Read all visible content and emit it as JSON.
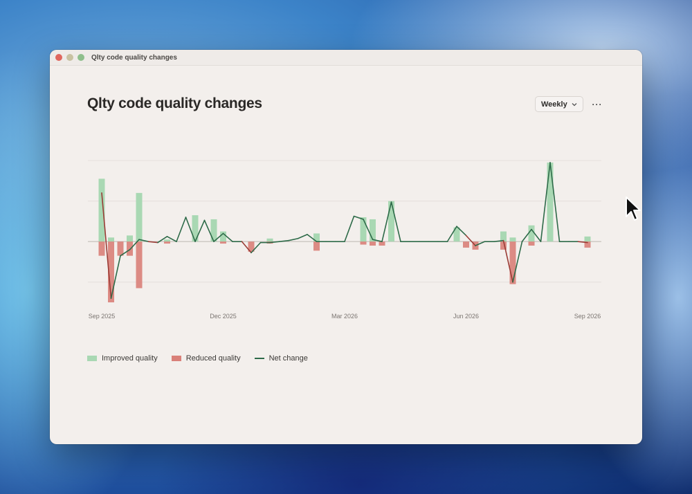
{
  "window": {
    "title": "Qlty code quality changes"
  },
  "page": {
    "title": "Qlty code quality changes"
  },
  "controls": {
    "period_selected": "Weekly",
    "more_label": "···"
  },
  "colors": {
    "improved": "#a9d8b3",
    "reduced": "#d98079",
    "net": "#2d6a48",
    "axis": "#bdb6b1",
    "grid": "#e4dfdb"
  },
  "icons": {
    "period_chevron": "chevron-down-icon",
    "more": "more-horizontal-icon",
    "cursor": "mouse-pointer-icon"
  },
  "legend": [
    {
      "label": "Improved quality",
      "kind": "bar",
      "color": "#a9d8b3"
    },
    {
      "label": "Reduced quality",
      "kind": "bar",
      "color": "#d98079"
    },
    {
      "label": "Net change",
      "kind": "line",
      "color": "#2d6a48"
    }
  ],
  "chart_data": {
    "type": "bar",
    "title": "",
    "xlabel": "",
    "ylabel": "",
    "ylim": [
      -3,
      4
    ],
    "grid": true,
    "legend_position": "bottom-left",
    "x_ticks": [
      "Sep 2025",
      "Dec 2025",
      "Mar 2026",
      "Jun 2026",
      "Sep 2026"
    ],
    "series": [
      {
        "name": "Improved quality",
        "values": [
          3.1,
          0.2,
          0,
          0.3,
          2.4,
          0,
          0,
          0.1,
          0,
          0,
          1.3,
          0,
          1.1,
          0.5,
          0,
          0,
          0,
          0,
          0.15,
          0,
          0,
          0,
          0,
          0.4,
          0,
          0,
          0,
          0,
          1.2,
          1.1,
          0,
          2.0,
          0,
          0,
          0,
          0,
          0,
          0,
          0.7,
          0,
          0,
          0,
          0,
          0.5,
          0.2,
          0,
          0.8,
          0,
          3.9,
          0,
          0,
          0,
          0.25
        ]
      },
      {
        "name": "Reduced quality",
        "values": [
          -0.7,
          -3.0,
          -0.7,
          -0.7,
          -2.3,
          0,
          0,
          -0.1,
          0,
          0,
          0,
          0,
          0,
          -0.1,
          0,
          0,
          -0.5,
          0,
          -0.1,
          0,
          0,
          0,
          0,
          -0.45,
          0,
          0,
          0,
          0,
          -0.15,
          -0.2,
          -0.2,
          0,
          0,
          0,
          0,
          0,
          0,
          0,
          0,
          -0.3,
          -0.4,
          0,
          0,
          -0.4,
          -2.1,
          0,
          -0.2,
          0,
          0,
          0,
          0,
          0,
          -0.3
        ]
      },
      {
        "name": "Net change",
        "values": [
          2.4,
          -2.8,
          -0.7,
          -0.4,
          0.1,
          0,
          -0.05,
          0.25,
          0,
          1.2,
          0,
          1.05,
          0,
          0.4,
          0,
          0,
          -0.55,
          -0.05,
          -0.05,
          0,
          0.05,
          0.15,
          0.35,
          0,
          0,
          0,
          0,
          1.25,
          1.1,
          0.1,
          0,
          1.95,
          0,
          0,
          0,
          0,
          0,
          0,
          0.75,
          0.3,
          -0.2,
          0,
          0,
          0.05,
          -2.0,
          0,
          0.6,
          0,
          3.9,
          0,
          0,
          0,
          -0.05
        ]
      }
    ]
  }
}
